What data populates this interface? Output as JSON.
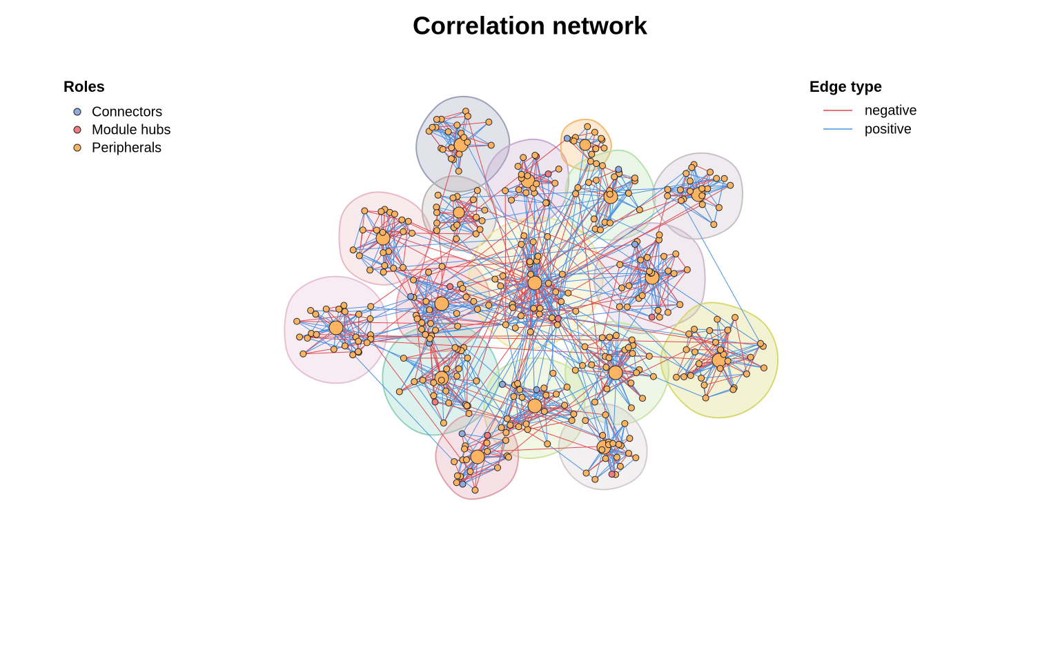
{
  "title": "Correlation network",
  "legend_roles": {
    "title": "Roles",
    "items": [
      {
        "label": "Connectors",
        "color": "#8faadc"
      },
      {
        "label": "Module hubs",
        "color": "#f07c82"
      },
      {
        "label": "Peripherals",
        "color": "#fdb462"
      }
    ]
  },
  "legend_edges": {
    "title": "Edge type",
    "items": [
      {
        "label": "negative",
        "color": "#e0474f"
      },
      {
        "label": "positive",
        "color": "#4a90e2"
      }
    ]
  }
}
